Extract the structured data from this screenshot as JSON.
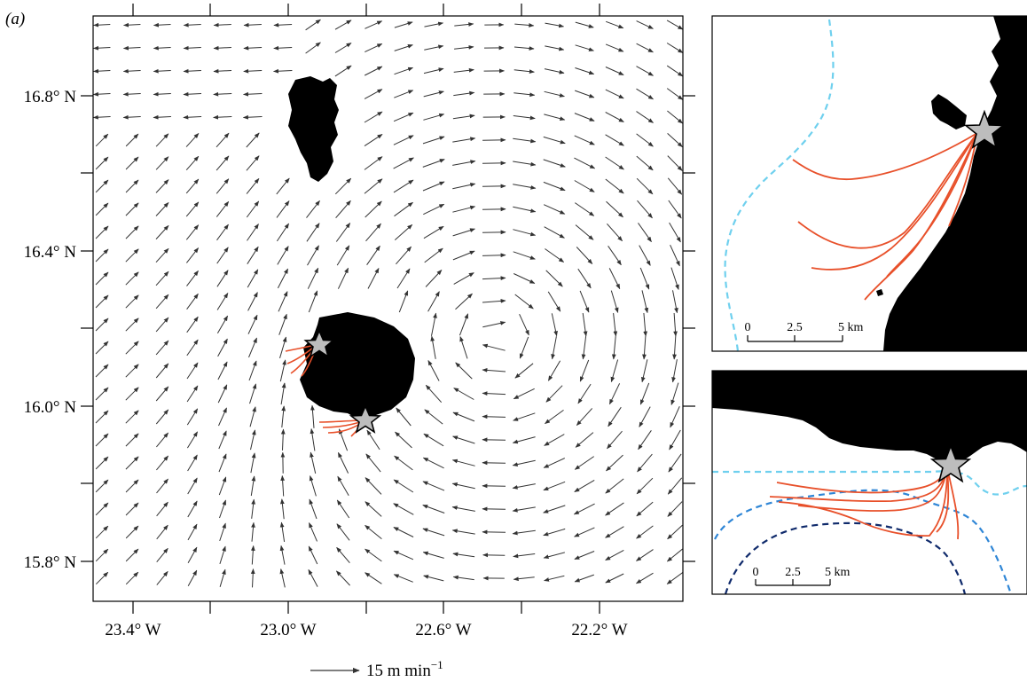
{
  "panel_label": "(a)",
  "main_map": {
    "lat_ticks": [
      "16.8° N",
      "16.4° N",
      "16.0° N",
      "15.8° N"
    ],
    "lon_ticks": [
      "23.4° W",
      "23.0° W",
      "22.6° W",
      "22.2° W"
    ],
    "legend_text": "15 m min",
    "legend_superscript": "−1"
  },
  "inset_top": {
    "scale_labels": [
      "0",
      "2.5",
      "5 km"
    ]
  },
  "inset_bottom": {
    "scale_labels": [
      "0",
      "2.5",
      "5 km"
    ]
  },
  "colors": {
    "land": "#000000",
    "tracks": "#e8502a",
    "star_fill": "#bdbdbd",
    "arrows": "#333333",
    "contour_light": "#6fd0ee",
    "contour_mid": "#2f86d6",
    "contour_dark": "#0f2a6b"
  }
}
